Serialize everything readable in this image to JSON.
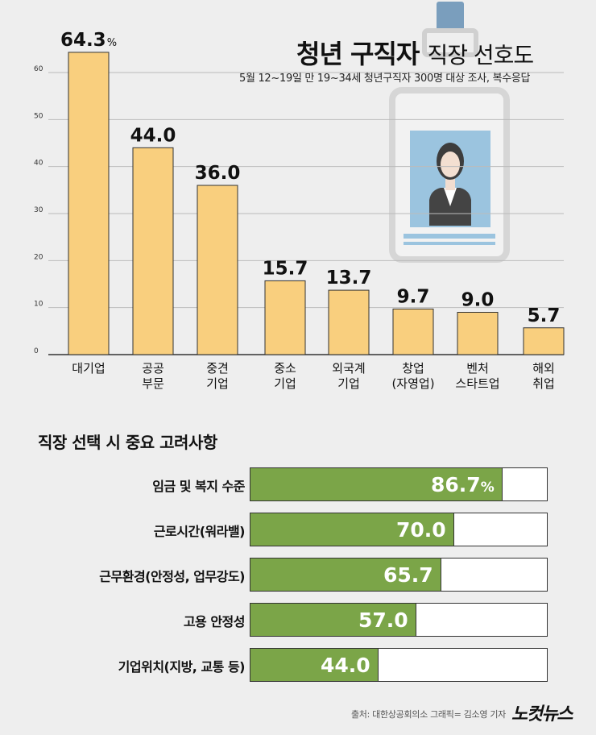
{
  "header": {
    "title_bold": "청년 구직자",
    "title_rest": "직장 선호도",
    "subtitle": "5월 12~19일 만 19~34세 청년구직자 300명 대상 조사, 복수응답"
  },
  "chart_data": [
    {
      "type": "bar",
      "categories": [
        "대기업",
        "공공\n부문",
        "중견\n기업",
        "중소\n기업",
        "외국계\n기업",
        "창업\n(자영업)",
        "벤처\n스타트업",
        "해외\n취업"
      ],
      "values": [
        64.3,
        44.0,
        36.0,
        15.7,
        13.7,
        9.7,
        9.0,
        5.7
      ],
      "value_labels": [
        "64.3",
        "44.0",
        "36.0",
        "15.7",
        "13.7",
        "9.7",
        "9.0",
        "5.7"
      ],
      "unit": "%",
      "yticks": [
        0,
        10,
        20,
        30,
        40,
        50,
        60
      ],
      "ylim": [
        0,
        65
      ],
      "grid": true,
      "colors": {
        "bar": "#f9cf7e",
        "bar_stroke": "#333333",
        "grid": "#bbbbbb"
      }
    },
    {
      "type": "bar",
      "orientation": "horizontal",
      "title": "직장 선택 시 중요 고려사항",
      "categories": [
        "임금 및 복지 수준",
        "근로시간(워라밸)",
        "근무환경(안정성, 업무강도)",
        "고용 안정성",
        "기업위치(지방, 교통 등)"
      ],
      "values": [
        86.7,
        70.0,
        65.7,
        57.0,
        44.0
      ],
      "value_labels": [
        "86.7",
        "70.0",
        "65.7",
        "57.0",
        "44.0"
      ],
      "unit": "%",
      "xlim": [
        0,
        100
      ],
      "colors": {
        "bar": "#7ba548",
        "track": "#ffffff"
      }
    }
  ],
  "footer": {
    "source": "출처: 대한상공회의소 그래픽= 김소영 기자",
    "logo": "노컷뉴스"
  }
}
